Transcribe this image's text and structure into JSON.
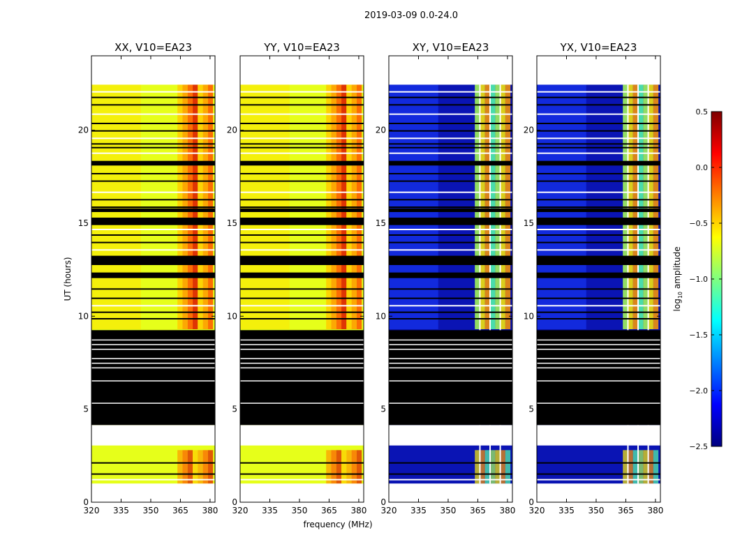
{
  "figure": {
    "suptitle": "2019-03-09 0.0-24.0",
    "ylabel": "UT (hours)",
    "xlabel": "frequency (MHz)"
  },
  "chart_data": {
    "type": "heatmap",
    "xlim": [
      320,
      382.5
    ],
    "ylim": [
      0,
      24
    ],
    "xticks": [
      320,
      335,
      350,
      365,
      380
    ],
    "yticks": [
      0,
      5,
      10,
      15,
      20
    ],
    "panels": [
      {
        "title": "XX, V10=EA23",
        "level": "high"
      },
      {
        "title": "YY, V10=EA23",
        "level": "high"
      },
      {
        "title": "XY, V10=EA23",
        "level": "low"
      },
      {
        "title": "YX, V10=EA23",
        "level": "low"
      }
    ],
    "masked_blocks_hours": [
      [
        4.15,
        9.25
      ],
      [
        12.05,
        12.35
      ],
      [
        12.75,
        13.25
      ],
      [
        14.9,
        15.3
      ],
      [
        15.6,
        15.8
      ],
      [
        18.1,
        18.35
      ]
    ],
    "empty_blocks_hours": [
      [
        0,
        1.0
      ],
      [
        3.05,
        4.15
      ],
      [
        22.45,
        24
      ]
    ],
    "masked_lines_hours": [
      9.9,
      10.25,
      10.6,
      11.0,
      11.5,
      13.6,
      14.0,
      14.4,
      14.7,
      15.9,
      16.3,
      16.7,
      17.3,
      17.7,
      18.8,
      19.1,
      19.3,
      19.6,
      20.0,
      20.4,
      20.9,
      21.4,
      21.8,
      22.1,
      2.15,
      1.55,
      1.25
    ],
    "rfi_band_mhz": [
      363.5,
      381.5
    ],
    "colorbar": {
      "label": "log10 amplitude",
      "range": [
        -2.5,
        0.5
      ],
      "ticks": [
        "0.5",
        "0.0",
        "−0.5",
        "−1.0",
        "−1.5",
        "−2.0",
        "−2.5"
      ],
      "colormap": "jet"
    }
  }
}
